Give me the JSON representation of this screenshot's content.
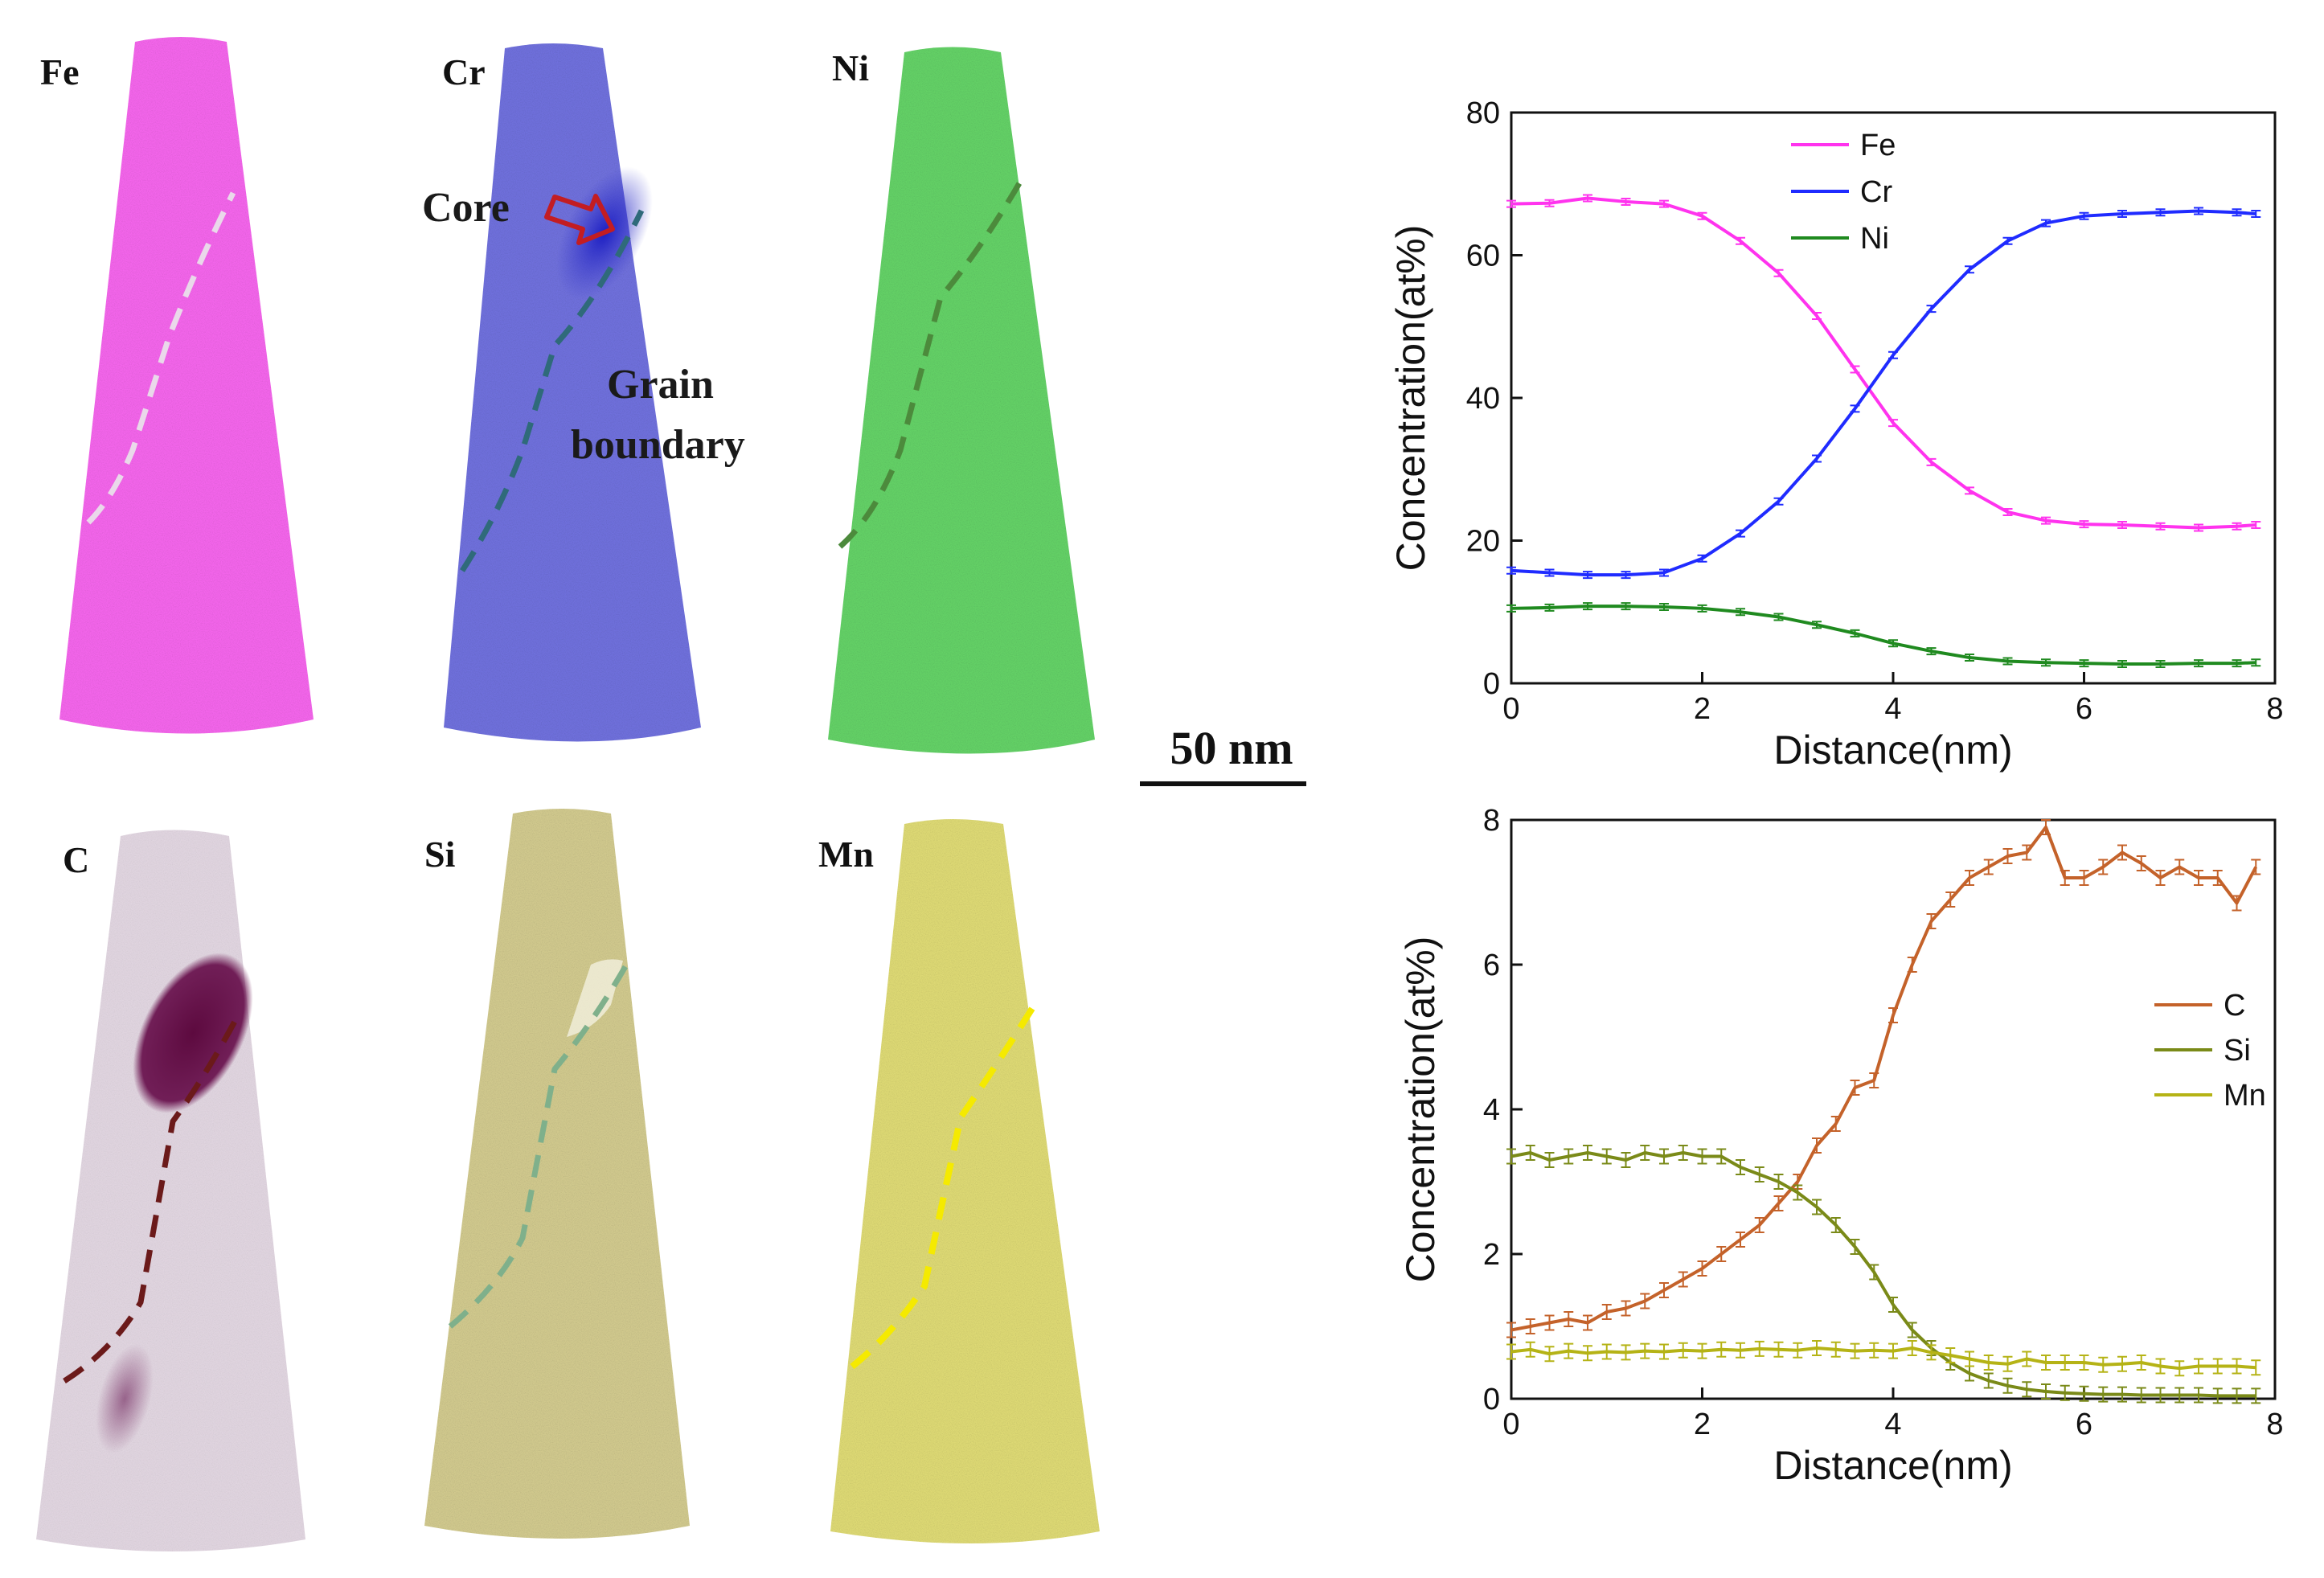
{
  "elements": {
    "fe": {
      "label": "Fe",
      "color": "#f24ae8"
    },
    "cr": {
      "label": "Cr",
      "color": "#5657d6"
    },
    "ni": {
      "label": "Ni",
      "color": "#48c94c"
    },
    "c": {
      "label": "C",
      "color": "#c7b2c6"
    },
    "si": {
      "label": "Si",
      "color": "#c9c07a"
    },
    "mn": {
      "label": "Mn",
      "color": "#d8d35c"
    }
  },
  "annotations": {
    "core": "Core",
    "grain_line1": "Grain",
    "grain_line2": "boundary",
    "scale_bar": "50 nm"
  },
  "chart_data": [
    {
      "type": "line",
      "title": "",
      "xlabel": "Distance(nm)",
      "ylabel": "Concentration(at%)",
      "xlim": [
        0,
        8
      ],
      "ylim": [
        0,
        80
      ],
      "xticks": [
        0,
        2,
        4,
        6,
        8
      ],
      "yticks": [
        0,
        20,
        40,
        60,
        80
      ],
      "legend_position": "top-center",
      "x": [
        0,
        0.4,
        0.8,
        1.2,
        1.6,
        2.0,
        2.4,
        2.8,
        3.2,
        3.6,
        4.0,
        4.4,
        4.8,
        5.2,
        5.6,
        6.0,
        6.4,
        6.8,
        7.2,
        7.6,
        7.8
      ],
      "series": [
        {
          "name": "Fe",
          "color": "#ff33ee",
          "values": [
            67.2,
            67.3,
            68.0,
            67.5,
            67.2,
            65.5,
            62.0,
            57.5,
            51.5,
            44.0,
            36.5,
            31.0,
            27.0,
            24.0,
            22.8,
            22.3,
            22.2,
            22.0,
            21.8,
            22.0,
            22.2
          ]
        },
        {
          "name": "Cr",
          "color": "#1f2bff",
          "values": [
            15.8,
            15.5,
            15.2,
            15.2,
            15.5,
            17.5,
            21.0,
            25.5,
            31.5,
            38.5,
            46.0,
            52.5,
            58.0,
            62.0,
            64.5,
            65.5,
            65.8,
            66.0,
            66.2,
            66.0,
            65.8
          ]
        },
        {
          "name": "Ni",
          "color": "#1f8a1f",
          "values": [
            10.5,
            10.6,
            10.8,
            10.8,
            10.7,
            10.5,
            10.0,
            9.3,
            8.2,
            7.0,
            5.6,
            4.5,
            3.6,
            3.1,
            2.9,
            2.8,
            2.7,
            2.7,
            2.8,
            2.8,
            2.9
          ]
        }
      ]
    },
    {
      "type": "line",
      "title": "",
      "xlabel": "Distance(nm)",
      "ylabel": "Concentration(at%)",
      "xlim": [
        0,
        8
      ],
      "ylim": [
        0,
        8
      ],
      "xticks": [
        0,
        2,
        4,
        6,
        8
      ],
      "yticks": [
        0,
        2,
        4,
        6,
        8
      ],
      "legend_position": "right",
      "x": [
        0.0,
        0.2,
        0.4,
        0.6,
        0.8,
        1.0,
        1.2,
        1.4,
        1.6,
        1.8,
        2.0,
        2.2,
        2.4,
        2.6,
        2.8,
        3.0,
        3.2,
        3.4,
        3.6,
        3.8,
        4.0,
        4.2,
        4.4,
        4.6,
        4.8,
        5.0,
        5.2,
        5.4,
        5.6,
        5.8,
        6.0,
        6.2,
        6.4,
        6.6,
        6.8,
        7.0,
        7.2,
        7.4,
        7.6,
        7.8
      ],
      "series": [
        {
          "name": "C",
          "color": "#c4622a",
          "values": [
            0.95,
            1.0,
            1.05,
            1.1,
            1.05,
            1.2,
            1.25,
            1.35,
            1.5,
            1.65,
            1.8,
            2.0,
            2.2,
            2.4,
            2.7,
            3.0,
            3.5,
            3.8,
            4.3,
            4.4,
            5.3,
            6.0,
            6.6,
            6.9,
            7.2,
            7.35,
            7.5,
            7.55,
            7.9,
            7.2,
            7.2,
            7.35,
            7.55,
            7.4,
            7.2,
            7.35,
            7.2,
            7.2,
            6.85,
            7.35
          ]
        },
        {
          "name": "Si",
          "color": "#7a8a18",
          "values": [
            3.35,
            3.4,
            3.3,
            3.35,
            3.4,
            3.35,
            3.3,
            3.4,
            3.35,
            3.4,
            3.35,
            3.35,
            3.2,
            3.1,
            3.0,
            2.85,
            2.65,
            2.4,
            2.1,
            1.75,
            1.3,
            0.95,
            0.7,
            0.5,
            0.35,
            0.25,
            0.18,
            0.13,
            0.1,
            0.08,
            0.07,
            0.06,
            0.06,
            0.05,
            0.05,
            0.05,
            0.05,
            0.04,
            0.04,
            0.04
          ]
        },
        {
          "name": "Mn",
          "color": "#b5b316",
          "values": [
            0.65,
            0.68,
            0.62,
            0.66,
            0.63,
            0.65,
            0.64,
            0.66,
            0.65,
            0.67,
            0.66,
            0.68,
            0.67,
            0.69,
            0.68,
            0.67,
            0.7,
            0.68,
            0.66,
            0.67,
            0.66,
            0.7,
            0.64,
            0.6,
            0.55,
            0.5,
            0.48,
            0.55,
            0.5,
            0.5,
            0.5,
            0.47,
            0.48,
            0.5,
            0.45,
            0.42,
            0.45,
            0.45,
            0.45,
            0.43
          ]
        }
      ]
    }
  ]
}
